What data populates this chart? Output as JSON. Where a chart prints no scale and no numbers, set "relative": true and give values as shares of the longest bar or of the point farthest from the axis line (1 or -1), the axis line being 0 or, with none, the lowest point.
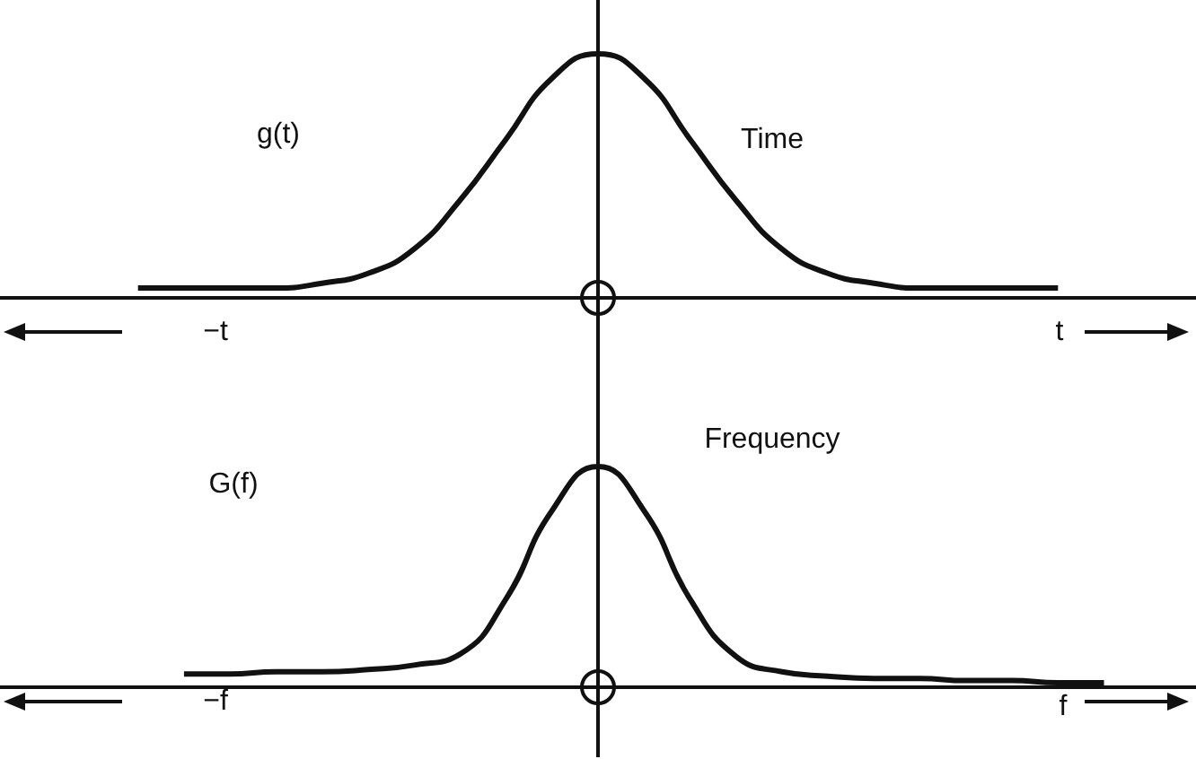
{
  "chart_data": [
    {
      "type": "line",
      "relative": true,
      "marker": "none",
      "tick_labels": false,
      "color": "#111111",
      "categories": [
        null,
        null,
        null,
        null,
        null,
        null,
        null,
        null,
        null,
        null,
        null,
        null,
        null,
        null,
        null,
        null,
        null,
        null,
        null,
        null,
        null,
        null,
        null,
        null,
        null,
        null,
        null
      ],
      "values": [
        null,
        null,
        null,
        0.04,
        0.04,
        0.04,
        0.04,
        0.06,
        0.1,
        0.2,
        0.4,
        0.65,
        0.9,
        1,
        0.9,
        0.65,
        0.4,
        0.2,
        0.1,
        0.06,
        0.04,
        0.04,
        0.04,
        0.04,
        null,
        null,
        null
      ],
      "annotations": [
        "g(t)",
        "Time",
        "−t",
        "t"
      ]
    },
    {
      "type": "line",
      "relative": true,
      "marker": "none",
      "tick_labels": false,
      "color": "#111111",
      "categories": [
        null,
        null,
        null,
        null,
        null,
        null,
        null,
        null,
        null,
        null,
        null,
        null,
        null,
        null,
        null,
        null,
        null,
        null,
        null,
        null,
        null,
        null,
        null,
        null,
        null,
        null,
        null
      ],
      "values": [
        null,
        null,
        null,
        null,
        0.06,
        0.06,
        0.07,
        0.07,
        0.08,
        0.1,
        0.15,
        0.4,
        0.8,
        1,
        0.8,
        0.4,
        0.14,
        0.07,
        0.05,
        0.04,
        0.04,
        0.03,
        0.03,
        0.02,
        0.02,
        null,
        null
      ],
      "annotations": [
        "G(f)",
        "Frequency",
        "−f",
        "f"
      ]
    }
  ]
}
